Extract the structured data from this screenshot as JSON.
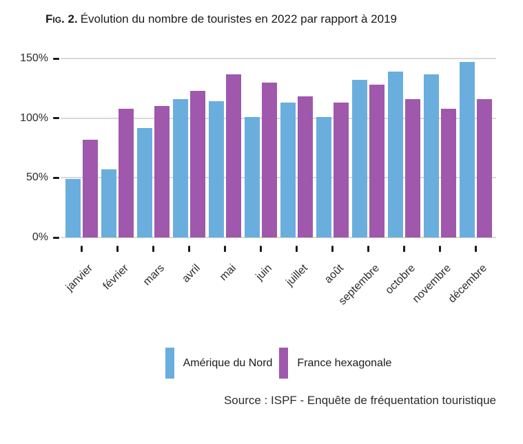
{
  "figure": {
    "label": "Fig. 2.",
    "title": "Évolution du nombre de touristes en 2022 par rapport à 2019"
  },
  "source": "Source : ISPF - Enquête de fréquentation touristique",
  "colors": {
    "north_america_blue": "#6aaede",
    "france_purple": "#9f58ab",
    "gridline": "#d9d9d9",
    "tick": "#1a1a1a",
    "text": "#2b2b2b"
  },
  "legend": [
    {
      "label": "Amérique du Nord",
      "color": "#6aaede"
    },
    {
      "label": "France hexagonale",
      "color": "#9f58ab"
    }
  ],
  "chart_data": {
    "type": "bar",
    "title": "Évolution du nombre de touristes en 2022 par rapport à 2019",
    "xlabel": "",
    "ylabel": "",
    "ylim": [
      0,
      150
    ],
    "grid": true,
    "legend_position": "bottom",
    "y_ticks": [
      {
        "value": 0,
        "label": "0%"
      },
      {
        "value": 50,
        "label": "50%"
      },
      {
        "value": 100,
        "label": "100%"
      },
      {
        "value": 150,
        "label": "150%"
      }
    ],
    "categories": [
      "janvier",
      "février",
      "mars",
      "avril",
      "mai",
      "juin",
      "juillet",
      "août",
      "septembre",
      "octobre",
      "novembre",
      "décembre"
    ],
    "series": [
      {
        "name": "Amérique du Nord",
        "color": "#6aaede",
        "values": [
          49,
          57,
          92,
          116,
          114,
          101,
          113,
          101,
          132,
          139,
          137,
          147
        ]
      },
      {
        "name": "France hexagonale",
        "color": "#9f58ab",
        "values": [
          82,
          108,
          110,
          123,
          137,
          130,
          118,
          113,
          128,
          116,
          108,
          116
        ]
      }
    ]
  }
}
